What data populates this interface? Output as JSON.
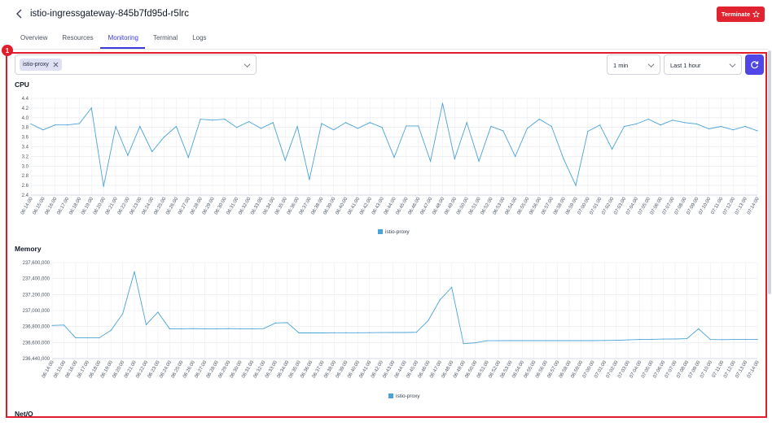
{
  "header": {
    "title": "istio-ingressgateway-845b7fd95d-r5lrc",
    "terminate_label": "Terminate"
  },
  "tabs": [
    {
      "label": "Overview",
      "active": false
    },
    {
      "label": "Resources",
      "active": false
    },
    {
      "label": "Monitoring",
      "active": true
    },
    {
      "label": "Terminal",
      "active": false
    },
    {
      "label": "Logs",
      "active": false
    }
  ],
  "badge": "1",
  "filters": {
    "container_chip": "istio-proxy",
    "interval": "1 min",
    "range": "Last 1 hour"
  },
  "colors": {
    "accent": "#3b3bd9",
    "terminate": "#e0232f",
    "series": "#4aa3d8",
    "highlight": "#e11d2b"
  },
  "cpu": {
    "title": "CPU",
    "legend": "istio-proxy"
  },
  "memory": {
    "title": "Memory",
    "legend": "istio-proxy"
  },
  "netio": {
    "title": "Net/O"
  },
  "chart_data": [
    {
      "type": "line",
      "title": "CPU",
      "ylim": [
        2.4,
        4.4
      ],
      "yticks": [
        "2.4",
        "2.6",
        "2.8",
        "3.0",
        "3.2",
        "3.4",
        "3.6",
        "3.8",
        "4.0",
        "4.2",
        "4.4"
      ],
      "x": [
        "06:14:00",
        "06:15:00",
        "06:16:00",
        "06:17:00",
        "06:18:00",
        "06:19:00",
        "06:20:00",
        "06:21:00",
        "06:22:00",
        "06:23:00",
        "06:24:00",
        "06:25:00",
        "06:26:00",
        "06:27:00",
        "06:28:00",
        "06:29:00",
        "06:30:00",
        "06:31:00",
        "06:32:00",
        "06:33:00",
        "06:34:00",
        "06:35:00",
        "06:36:00",
        "06:37:00",
        "06:38:00",
        "06:39:00",
        "06:40:00",
        "06:41:00",
        "06:42:00",
        "06:43:00",
        "06:44:00",
        "06:45:00",
        "06:46:00",
        "06:47:00",
        "06:48:00",
        "06:49:00",
        "06:50:00",
        "06:51:00",
        "06:52:00",
        "06:53:00",
        "06:54:00",
        "06:55:00",
        "06:56:00",
        "06:57:00",
        "06:58:00",
        "06:59:00",
        "07:00:00",
        "07:01:00",
        "07:02:00",
        "07:03:00",
        "07:04:00",
        "07:05:00",
        "07:06:00",
        "07:07:00",
        "07:08:00",
        "07:09:00",
        "07:10:00",
        "07:11:00",
        "07:12:00",
        "07:13:00",
        "07:14:00"
      ],
      "series": [
        {
          "name": "istio-proxy",
          "values": [
            3.87,
            3.75,
            3.85,
            3.85,
            3.88,
            4.2,
            2.58,
            3.82,
            3.22,
            3.82,
            3.3,
            3.6,
            3.82,
            3.18,
            3.97,
            3.95,
            3.97,
            3.8,
            3.92,
            3.78,
            3.9,
            3.12,
            3.82,
            2.72,
            3.88,
            3.75,
            3.9,
            3.78,
            3.9,
            3.8,
            3.18,
            3.83,
            3.83,
            3.1,
            4.3,
            3.15,
            3.9,
            3.1,
            3.82,
            3.73,
            3.2,
            3.78,
            3.97,
            3.82,
            3.15,
            2.6,
            3.72,
            3.85,
            3.35,
            3.82,
            3.87,
            3.97,
            3.85,
            3.95,
            3.9,
            3.87,
            3.77,
            3.82,
            3.75,
            3.82,
            3.73
          ]
        }
      ]
    },
    {
      "type": "line",
      "title": "Memory",
      "ylim": [
        236440000,
        237600000
      ],
      "yticks": [
        "236,440,000",
        "236,600,000",
        "236,800,000",
        "237,000,000",
        "237,200,000",
        "237,400,000",
        "237,600,000"
      ],
      "x": [
        "06:14:00",
        "06:15:00",
        "06:16:00",
        "06:17:00",
        "06:18:00",
        "06:19:00",
        "06:20:00",
        "06:21:00",
        "06:22:00",
        "06:23:00",
        "06:24:00",
        "06:25:00",
        "06:26:00",
        "06:27:00",
        "06:28:00",
        "06:29:00",
        "06:30:00",
        "06:31:00",
        "06:32:00",
        "06:33:00",
        "06:34:00",
        "06:35:00",
        "06:36:00",
        "06:37:00",
        "06:38:00",
        "06:39:00",
        "06:40:00",
        "06:41:00",
        "06:42:00",
        "06:43:00",
        "06:44:00",
        "06:45:00",
        "06:46:00",
        "06:47:00",
        "06:48:00",
        "06:49:00",
        "06:50:00",
        "06:51:00",
        "06:52:00",
        "06:53:00",
        "06:54:00",
        "06:55:00",
        "06:56:00",
        "06:57:00",
        "06:58:00",
        "06:59:00",
        "07:00:00",
        "07:01:00",
        "07:02:00",
        "07:03:00",
        "07:04:00",
        "07:05:00",
        "07:06:00",
        "07:07:00",
        "07:08:00",
        "07:09:00",
        "07:10:00",
        "07:11:00",
        "07:12:00",
        "07:13:00",
        "07:14:00"
      ],
      "series": [
        {
          "name": "istio-proxy",
          "values": [
            236840000,
            236845000,
            236690000,
            236690000,
            236690000,
            236780000,
            236980000,
            237490000,
            236850000,
            237000000,
            236800000,
            236800000,
            236802000,
            236800000,
            236800000,
            236802000,
            236800000,
            236800000,
            236802000,
            236870000,
            236875000,
            236750000,
            236750000,
            236750000,
            236752000,
            236752000,
            236752000,
            236753000,
            236754000,
            236755000,
            236755000,
            236758000,
            236900000,
            237150000,
            237300000,
            236620000,
            236630000,
            236655000,
            236655000,
            236656000,
            236656000,
            236656000,
            236656000,
            236656000,
            236656000,
            236656000,
            236656000,
            236658000,
            236660000,
            236665000,
            236670000,
            236672000,
            236675000,
            236676000,
            236680000,
            236800000,
            236670000,
            236668000,
            236670000,
            236670000,
            236670000
          ]
        }
      ]
    }
  ]
}
